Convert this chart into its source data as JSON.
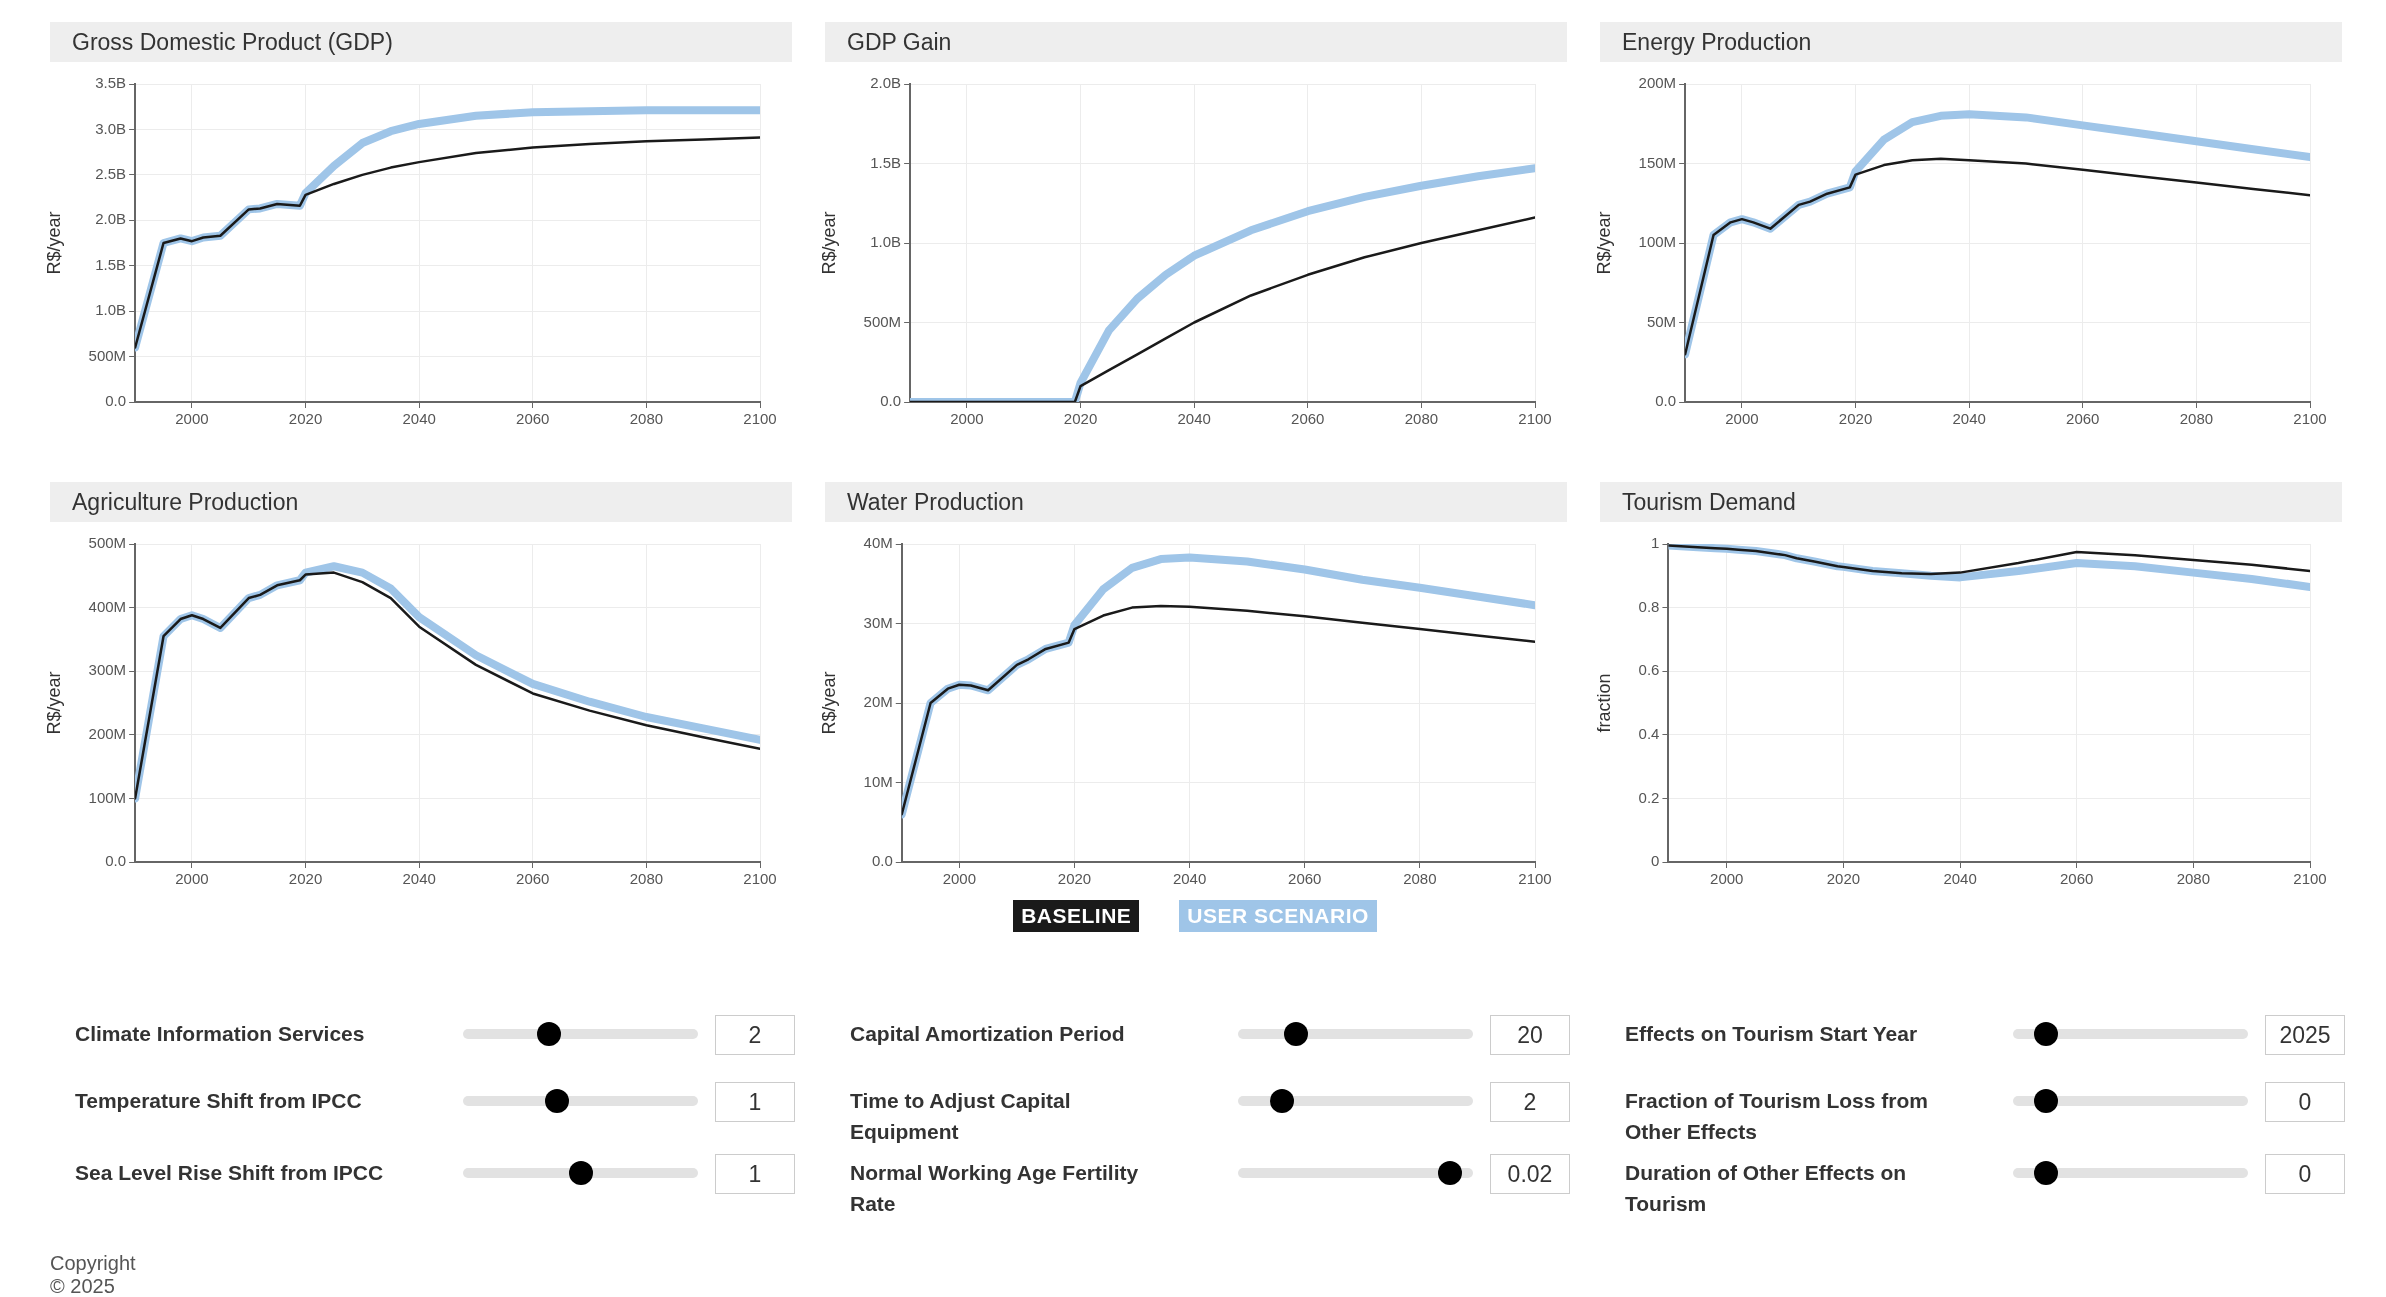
{
  "chart_data": [
    {
      "type": "line",
      "title": "Gross Domestic Product (GDP)",
      "ylabel": "R$/year",
      "grid": true,
      "x": [
        1990,
        1995,
        1998,
        2000,
        2002,
        2005,
        2010,
        2012,
        2015,
        2019,
        2020,
        2025,
        2030,
        2035,
        2040,
        2050,
        2060,
        2070,
        2080,
        2090,
        2100
      ],
      "xlim": [
        1990,
        2100
      ],
      "xticks": [
        2000,
        2020,
        2040,
        2060,
        2080,
        2100
      ],
      "ylim": [
        0,
        3500000000
      ],
      "yticks": [
        {
          "value": 0,
          "label": "0.0"
        },
        {
          "value": 500000000,
          "label": "500M"
        },
        {
          "value": 1000000000,
          "label": "1.0B"
        },
        {
          "value": 1500000000,
          "label": "1.5B"
        },
        {
          "value": 2000000000,
          "label": "2.0B"
        },
        {
          "value": 2500000000,
          "label": "2.5B"
        },
        {
          "value": 3000000000,
          "label": "3.0B"
        },
        {
          "value": 3500000000,
          "label": "3.5B"
        }
      ],
      "series": [
        {
          "color": "#1a1a1a",
          "values": [
            600000000,
            1750000000,
            1800000000,
            1770000000,
            1810000000,
            1830000000,
            2120000000,
            2130000000,
            2180000000,
            2160000000,
            2280000000,
            2400000000,
            2500000000,
            2580000000,
            2640000000,
            2740000000,
            2800000000,
            2840000000,
            2870000000,
            2890000000,
            2910000000
          ]
        },
        {
          "color": "#9fc5e8",
          "values": [
            600000000,
            1750000000,
            1800000000,
            1770000000,
            1810000000,
            1830000000,
            2120000000,
            2130000000,
            2180000000,
            2160000000,
            2300000000,
            2600000000,
            2850000000,
            2980000000,
            3060000000,
            3150000000,
            3190000000,
            3200000000,
            3210000000,
            3210000000,
            3210000000
          ]
        }
      ]
    },
    {
      "type": "line",
      "title": "GDP Gain",
      "ylabel": "R$/year",
      "grid": true,
      "x": [
        1990,
        1995,
        1998,
        2000,
        2002,
        2005,
        2010,
        2012,
        2015,
        2019,
        2020,
        2025,
        2030,
        2035,
        2040,
        2050,
        2060,
        2070,
        2080,
        2090,
        2100
      ],
      "xlim": [
        1990,
        2100
      ],
      "xticks": [
        2000,
        2020,
        2040,
        2060,
        2080,
        2100
      ],
      "ylim": [
        0,
        2000000000
      ],
      "yticks": [
        {
          "value": 0,
          "label": "0.0"
        },
        {
          "value": 500000000,
          "label": "500M"
        },
        {
          "value": 1000000000,
          "label": "1.0B"
        },
        {
          "value": 1500000000,
          "label": "1.5B"
        },
        {
          "value": 2000000000,
          "label": "2.0B"
        }
      ],
      "series": [
        {
          "color": "#1a1a1a",
          "values": [
            0,
            0,
            0,
            0,
            0,
            0,
            0,
            0,
            0,
            0,
            100000000,
            200000000,
            300000000,
            400000000,
            500000000,
            670000000,
            800000000,
            910000000,
            1000000000,
            1080000000,
            1160000000
          ]
        },
        {
          "color": "#9fc5e8",
          "values": [
            0,
            0,
            0,
            0,
            0,
            0,
            0,
            0,
            0,
            0,
            120000000,
            450000000,
            650000000,
            800000000,
            920000000,
            1080000000,
            1200000000,
            1290000000,
            1360000000,
            1420000000,
            1470000000
          ]
        }
      ]
    },
    {
      "type": "line",
      "title": "Energy Production",
      "ylabel": "R$/year",
      "grid": true,
      "x": [
        1990,
        1995,
        1998,
        2000,
        2002,
        2005,
        2010,
        2012,
        2015,
        2019,
        2020,
        2025,
        2030,
        2035,
        2040,
        2050,
        2060,
        2070,
        2080,
        2090,
        2100
      ],
      "xlim": [
        1990,
        2100
      ],
      "xticks": [
        2000,
        2020,
        2040,
        2060,
        2080,
        2100
      ],
      "ylim": [
        0,
        200000000
      ],
      "yticks": [
        {
          "value": 0,
          "label": "0.0"
        },
        {
          "value": 50000000,
          "label": "50M"
        },
        {
          "value": 100000000,
          "label": "100M"
        },
        {
          "value": 150000000,
          "label": "150M"
        },
        {
          "value": 200000000,
          "label": "200M"
        }
      ],
      "series": [
        {
          "color": "#1a1a1a",
          "values": [
            30000000,
            105000000,
            113000000,
            115000000,
            113000000,
            109000000,
            124000000,
            126000000,
            131000000,
            135000000,
            143000000,
            149000000,
            152000000,
            153000000,
            152000000,
            150000000,
            146000000,
            142000000,
            138000000,
            134000000,
            130000000
          ]
        },
        {
          "color": "#9fc5e8",
          "values": [
            30000000,
            105000000,
            113000000,
            115000000,
            113000000,
            109000000,
            124000000,
            126000000,
            131000000,
            135000000,
            145000000,
            165000000,
            176000000,
            180000000,
            181000000,
            179000000,
            174000000,
            169000000,
            164000000,
            159000000,
            154000000
          ]
        }
      ]
    },
    {
      "type": "line",
      "title": "Agriculture Production",
      "ylabel": "R$/year",
      "grid": true,
      "x": [
        1990,
        1995,
        1998,
        2000,
        2002,
        2005,
        2010,
        2012,
        2015,
        2019,
        2020,
        2025,
        2030,
        2035,
        2040,
        2050,
        2060,
        2070,
        2080,
        2090,
        2100
      ],
      "xlim": [
        1990,
        2100
      ],
      "xticks": [
        2000,
        2020,
        2040,
        2060,
        2080,
        2100
      ],
      "ylim": [
        0,
        500000000
      ],
      "yticks": [
        {
          "value": 0,
          "label": "0.0"
        },
        {
          "value": 100000000,
          "label": "100M"
        },
        {
          "value": 200000000,
          "label": "200M"
        },
        {
          "value": 300000000,
          "label": "300M"
        },
        {
          "value": 400000000,
          "label": "400M"
        },
        {
          "value": 500000000,
          "label": "500M"
        }
      ],
      "series": [
        {
          "color": "#1a1a1a",
          "values": [
            100000000,
            355000000,
            382000000,
            388000000,
            382000000,
            368000000,
            415000000,
            420000000,
            435000000,
            443000000,
            452000000,
            455000000,
            440000000,
            415000000,
            370000000,
            310000000,
            265000000,
            238000000,
            215000000,
            196000000,
            178000000
          ]
        },
        {
          "color": "#9fc5e8",
          "values": [
            100000000,
            355000000,
            382000000,
            388000000,
            382000000,
            368000000,
            415000000,
            420000000,
            435000000,
            443000000,
            455000000,
            465000000,
            455000000,
            430000000,
            385000000,
            325000000,
            280000000,
            252000000,
            228000000,
            210000000,
            192000000
          ]
        }
      ]
    },
    {
      "type": "line",
      "title": "Water Production",
      "ylabel": "R$/year",
      "grid": true,
      "legend": "bottom",
      "x": [
        1990,
        1995,
        1998,
        2000,
        2002,
        2005,
        2010,
        2012,
        2015,
        2019,
        2020,
        2025,
        2030,
        2035,
        2040,
        2050,
        2060,
        2070,
        2080,
        2090,
        2100
      ],
      "xlim": [
        1990,
        2100
      ],
      "xticks": [
        2000,
        2020,
        2040,
        2060,
        2080,
        2100
      ],
      "ylim": [
        0,
        40000000
      ],
      "yticks": [
        {
          "value": 0,
          "label": "0.0"
        },
        {
          "value": 10000000,
          "label": "10M"
        },
        {
          "value": 20000000,
          "label": "20M"
        },
        {
          "value": 30000000,
          "label": "30M"
        },
        {
          "value": 40000000,
          "label": "40M"
        }
      ],
      "series": [
        {
          "name": "BASELINE",
          "color": "#1a1a1a",
          "values": [
            6000000,
            20000000,
            21800000,
            22300000,
            22200000,
            21600000,
            24800000,
            25500000,
            26800000,
            27600000,
            29300000,
            31000000,
            32000000,
            32200000,
            32100000,
            31600000,
            30900000,
            30100000,
            29300000,
            28500000,
            27700000
          ]
        },
        {
          "name": "USER SCENARIO",
          "color": "#9fc5e8",
          "values": [
            6000000,
            20000000,
            21800000,
            22300000,
            22200000,
            21600000,
            24800000,
            25500000,
            26800000,
            27600000,
            29800000,
            34300000,
            37000000,
            38100000,
            38300000,
            37800000,
            36800000,
            35500000,
            34500000,
            33400000,
            32300000
          ]
        }
      ]
    },
    {
      "type": "line",
      "title": "Tourism Demand",
      "ylabel": "fraction",
      "grid": true,
      "x": [
        1990,
        1995,
        1998,
        2000,
        2002,
        2005,
        2010,
        2012,
        2015,
        2019,
        2020,
        2025,
        2030,
        2035,
        2040,
        2050,
        2060,
        2070,
        2080,
        2090,
        2100
      ],
      "xlim": [
        1990,
        2100
      ],
      "xticks": [
        2000,
        2020,
        2040,
        2060,
        2080,
        2100
      ],
      "ylim": [
        0,
        1
      ],
      "yticks": [
        0,
        0.2,
        0.4,
        0.6,
        0.8,
        1
      ],
      "series": [
        {
          "color": "#1a1a1a",
          "values": [
            0.995,
            0.99,
            0.987,
            0.985,
            0.982,
            0.978,
            0.965,
            0.955,
            0.945,
            0.93,
            0.928,
            0.915,
            0.908,
            0.906,
            0.91,
            0.94,
            0.975,
            0.965,
            0.95,
            0.935,
            0.915
          ]
        },
        {
          "color": "#9fc5e8",
          "values": [
            0.995,
            0.99,
            0.987,
            0.985,
            0.982,
            0.978,
            0.965,
            0.955,
            0.945,
            0.93,
            0.928,
            0.915,
            0.908,
            0.9,
            0.895,
            0.915,
            0.94,
            0.93,
            0.91,
            0.89,
            0.865
          ]
        }
      ]
    },
    {
      "type": "other",
      "annotations": [
        "Climate Information Services",
        "2",
        "Temperature Shift from IPCC",
        "1",
        "Sea Level Rise Shift from IPCC",
        "1",
        "Capital Amortization Period",
        "20",
        "Time to Adjust Capital Equipment",
        "2",
        "Normal Working Age Fertility Rate",
        "0.02",
        "Effects on Tourism Start Year",
        "2025",
        "Fraction of Tourism Loss from Other Effects",
        "0",
        "Duration of Other Effects on Tourism",
        "0",
        "Copyright © 2025"
      ]
    }
  ]
}
